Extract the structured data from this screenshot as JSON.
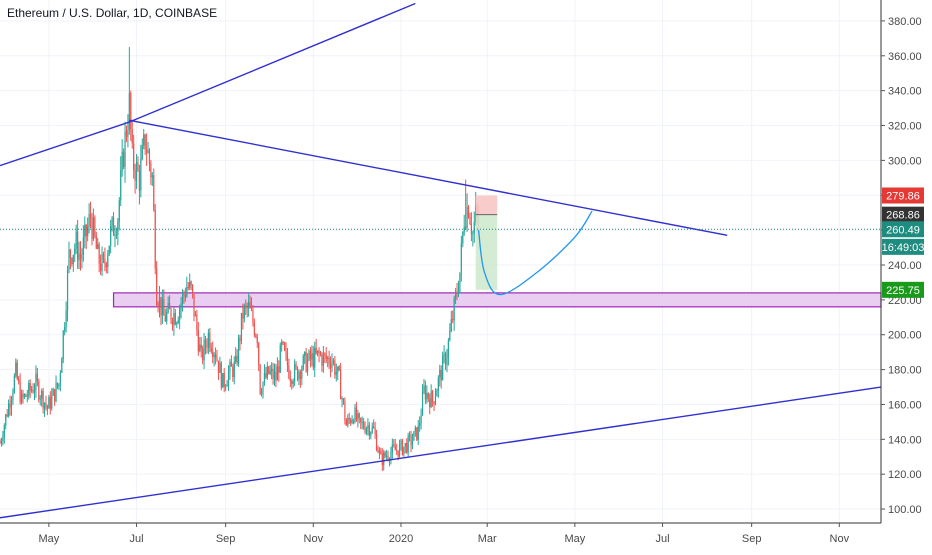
{
  "title": "Ethereum / U.S. Dollar, 1D, COINBASE",
  "colors": {
    "background": "#ffffff",
    "grid": "#f0f3fa",
    "up": "#26a69a",
    "down": "#ef5350",
    "trendline": "#3030d0",
    "zone_fill": "#e5c6f0",
    "zone_stroke": "#9c27b0",
    "stop_fill": "#f8c6c6",
    "target_fill": "#cfe9cf",
    "projection": "#2196f3",
    "current_line": "#1e8c7e",
    "axis_text": "#4a4a4a"
  },
  "chart_data": {
    "type": "candlestick",
    "title": "Ethereum / U.S. Dollar, 1D, COINBASE",
    "x_unit": "date",
    "xlim": [
      "2019-03-28",
      "2020-11-30"
    ],
    "ylim": [
      92,
      392
    ],
    "y_scale": "linear",
    "y_ticks": [
      100,
      120,
      140,
      160,
      180,
      200,
      220,
      240,
      260,
      280,
      300,
      320,
      340,
      360,
      380
    ],
    "y_tick_labels": [
      "100.00",
      "120.00",
      "140.00",
      "160.00",
      "180.00",
      "200.00",
      "220.00",
      "240.00",
      "260.00",
      "280.00",
      "300.00",
      "320.00",
      "340.00",
      "360.00",
      "380.00"
    ],
    "x_ticks": [
      {
        "date": "2019-05-01",
        "label": "May"
      },
      {
        "date": "2019-07-01",
        "label": "Jul"
      },
      {
        "date": "2019-09-01",
        "label": "Sep"
      },
      {
        "date": "2019-11-01",
        "label": "Nov"
      },
      {
        "date": "2020-01-01",
        "label": "2020"
      },
      {
        "date": "2020-03-01",
        "label": "Mar"
      },
      {
        "date": "2020-05-01",
        "label": "May"
      },
      {
        "date": "2020-07-01",
        "label": "Jul"
      },
      {
        "date": "2020-09-01",
        "label": "Sep"
      },
      {
        "date": "2020-11-01",
        "label": "Nov"
      }
    ],
    "grid": true,
    "price_path": [
      [
        "2019-03-28",
        138
      ],
      [
        "2019-04-08",
        178
      ],
      [
        "2019-04-12",
        162
      ],
      [
        "2019-04-22",
        172
      ],
      [
        "2019-04-30",
        158
      ],
      [
        "2019-05-08",
        172
      ],
      [
        "2019-05-12",
        210
      ],
      [
        "2019-05-15",
        245
      ],
      [
        "2019-05-20",
        252
      ],
      [
        "2019-05-23",
        244
      ],
      [
        "2019-05-30",
        268
      ],
      [
        "2019-06-04",
        244
      ],
      [
        "2019-06-08",
        238
      ],
      [
        "2019-06-13",
        258
      ],
      [
        "2019-06-18",
        268
      ],
      [
        "2019-06-22",
        305
      ],
      [
        "2019-06-26",
        332
      ],
      [
        "2019-06-28",
        300
      ],
      [
        "2019-07-03",
        290
      ],
      [
        "2019-07-07",
        312
      ],
      [
        "2019-07-12",
        290
      ],
      [
        "2019-07-15",
        225
      ],
      [
        "2019-07-20",
        210
      ],
      [
        "2019-07-24",
        212
      ],
      [
        "2019-07-29",
        212
      ],
      [
        "2019-08-05",
        228
      ],
      [
        "2019-08-08",
        225
      ],
      [
        "2019-08-15",
        186
      ],
      [
        "2019-08-20",
        200
      ],
      [
        "2019-08-25",
        190
      ],
      [
        "2019-08-30",
        172
      ],
      [
        "2019-09-03",
        178
      ],
      [
        "2019-09-08",
        182
      ],
      [
        "2019-09-13",
        212
      ],
      [
        "2019-09-17",
        215
      ],
      [
        "2019-09-23",
        200
      ],
      [
        "2019-09-25",
        170
      ],
      [
        "2019-10-01",
        178
      ],
      [
        "2019-10-06",
        175
      ],
      [
        "2019-10-10",
        192
      ],
      [
        "2019-10-16",
        178
      ],
      [
        "2019-10-20",
        178
      ],
      [
        "2019-10-26",
        184
      ],
      [
        "2019-10-31",
        186
      ],
      [
        "2019-11-05",
        188
      ],
      [
        "2019-11-09",
        186
      ],
      [
        "2019-11-14",
        186
      ],
      [
        "2019-11-19",
        174
      ],
      [
        "2019-11-24",
        148
      ],
      [
        "2019-11-29",
        155
      ],
      [
        "2019-12-03",
        148
      ],
      [
        "2019-12-09",
        148
      ],
      [
        "2019-12-13",
        145
      ],
      [
        "2019-12-18",
        128
      ],
      [
        "2019-12-23",
        132
      ],
      [
        "2019-12-29",
        134
      ],
      [
        "2020-01-04",
        136
      ],
      [
        "2020-01-09",
        140
      ],
      [
        "2020-01-13",
        145
      ],
      [
        "2020-01-17",
        168
      ],
      [
        "2020-01-23",
        162
      ],
      [
        "2020-01-28",
        176
      ],
      [
        "2020-02-02",
        190
      ],
      [
        "2020-02-08",
        220
      ],
      [
        "2020-02-11",
        236
      ],
      [
        "2020-02-14",
        268
      ],
      [
        "2020-02-17",
        275
      ],
      [
        "2020-02-20",
        258
      ],
      [
        "2020-02-22",
        268
      ],
      [
        "2020-02-24",
        260
      ]
    ],
    "highlight_candles": [
      {
        "date": "2019-05-30",
        "high": 270
      },
      {
        "date": "2019-06-26",
        "high": 365
      },
      {
        "date": "2020-02-15",
        "high": 289
      }
    ],
    "trendlines": [
      {
        "from": [
          "2019-03-28",
          297
        ],
        "to": [
          "2019-06-26",
          322
        ]
      },
      {
        "from": [
          "2019-06-26",
          322
        ],
        "to": [
          "2020-01-11",
          390
        ]
      },
      {
        "from": [
          "2019-06-26",
          323
        ],
        "to": [
          "2020-08-15",
          257
        ]
      },
      {
        "from": [
          "2019-03-28",
          95
        ],
        "to": [
          "2020-11-30",
          170
        ]
      }
    ],
    "support_zone": {
      "from": "2019-06-15",
      "to": "2020-11-30",
      "low": 216,
      "high": 224
    },
    "position": {
      "from": "2020-02-22",
      "to": "2020-03-08",
      "stop": 279.86,
      "entry": 268.86,
      "target": 225.75
    },
    "projection_path": [
      [
        "2020-02-24",
        260
      ],
      [
        "2020-02-28",
        236
      ],
      [
        "2020-03-10",
        223
      ],
      [
        "2020-04-05",
        236
      ],
      [
        "2020-05-01",
        256
      ],
      [
        "2020-05-13",
        271
      ]
    ],
    "current_price": 260.49,
    "price_labels": [
      {
        "text": "279.86",
        "value": 279.86,
        "color": "#e53935"
      },
      {
        "text": "268.86",
        "value": 268.86,
        "color": "#333333"
      },
      {
        "text": "260.49",
        "value": 260.49,
        "color": "#1e8c7e"
      },
      {
        "text": "16:49:03",
        "value": 250.4,
        "color": "#1e8c7e"
      },
      {
        "text": "225.75",
        "value": 225.75,
        "color": "#1a9a1a"
      }
    ]
  }
}
